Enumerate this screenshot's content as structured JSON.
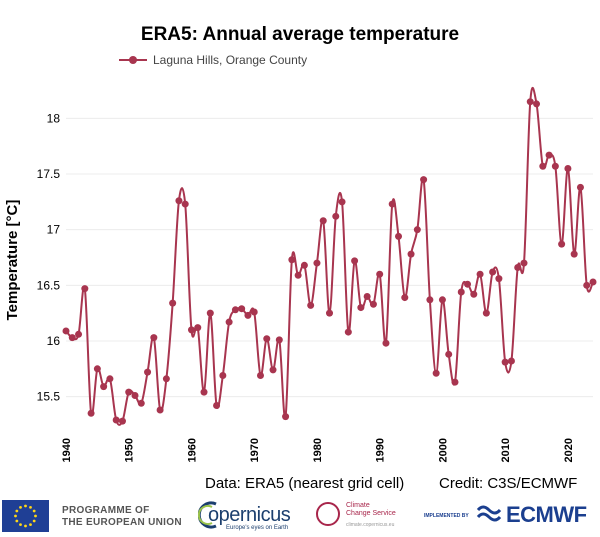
{
  "chart_data": {
    "type": "line",
    "title": "ERA5: Annual average temperature",
    "legend": {
      "placement": "top-left",
      "entries": [
        "Laguna Hills, Orange County"
      ]
    },
    "xlabel": "",
    "ylabel": "Temperature [°C]",
    "xlim": [
      1940,
      2024
    ],
    "ylim": [
      15.2,
      18.3
    ],
    "x_ticks": [
      "1940",
      "1950",
      "1960",
      "1970",
      "1980",
      "1990",
      "2000",
      "2010",
      "2020"
    ],
    "y_ticks": [
      "15.5",
      "16",
      "16.5",
      "17",
      "17.5",
      "18"
    ],
    "grid": true,
    "series": [
      {
        "name": "Laguna Hills, Orange County",
        "color": "#a8354f",
        "x": [
          1940,
          1941,
          1942,
          1943,
          1944,
          1945,
          1946,
          1947,
          1948,
          1949,
          1950,
          1951,
          1952,
          1953,
          1954,
          1955,
          1956,
          1957,
          1958,
          1959,
          1960,
          1961,
          1962,
          1963,
          1964,
          1965,
          1966,
          1967,
          1968,
          1969,
          1970,
          1971,
          1972,
          1973,
          1974,
          1975,
          1976,
          1977,
          1978,
          1979,
          1980,
          1981,
          1982,
          1983,
          1984,
          1985,
          1986,
          1987,
          1988,
          1989,
          1990,
          1991,
          1992,
          1993,
          1994,
          1995,
          1996,
          1997,
          1998,
          1999,
          2000,
          2001,
          2002,
          2003,
          2004,
          2005,
          2006,
          2007,
          2008,
          2009,
          2010,
          2011,
          2012,
          2013,
          2014,
          2015,
          2016,
          2017,
          2018,
          2019,
          2020,
          2021,
          2022,
          2023,
          2024
        ],
        "values": [
          16.09,
          16.03,
          16.06,
          16.47,
          15.35,
          15.75,
          15.59,
          15.66,
          15.29,
          15.28,
          15.54,
          15.51,
          15.44,
          15.72,
          16.03,
          15.38,
          15.66,
          16.34,
          17.26,
          17.23,
          16.1,
          16.12,
          15.54,
          16.25,
          15.42,
          15.69,
          16.17,
          16.28,
          16.29,
          16.23,
          16.26,
          15.69,
          16.02,
          15.74,
          16.01,
          15.32,
          16.73,
          16.59,
          16.68,
          16.32,
          16.7,
          17.08,
          16.25,
          17.12,
          17.25,
          16.08,
          16.72,
          16.3,
          16.4,
          16.33,
          16.6,
          15.98,
          17.23,
          16.94,
          16.39,
          16.78,
          17.0,
          17.45,
          16.37,
          15.71,
          16.37,
          15.88,
          15.63,
          16.44,
          16.51,
          16.42,
          16.6,
          16.25,
          16.62,
          16.56,
          15.81,
          15.82,
          16.66,
          16.7,
          18.15,
          18.13,
          17.57,
          17.67,
          17.57,
          16.87,
          17.55,
          16.78,
          17.38,
          16.5,
          16.53
        ]
      }
    ],
    "credits": {
      "data": "Data: ERA5 (nearest grid cell)",
      "credit": "Credit: C3S/ECMWF"
    }
  },
  "footer": {
    "eu_line1": "PROGRAMME OF",
    "eu_line2": "THE EUROPEAN UNION",
    "copernicus_word": "opernicus",
    "copernicus_sub": "Europe's eyes on Earth",
    "c3s_line1": "Climate",
    "c3s_line2": "Change Service",
    "c3s_url": "climate.copernicus.eu",
    "implemented": "IMPLEMENTED BY",
    "ecmwf": "ECMWF"
  }
}
